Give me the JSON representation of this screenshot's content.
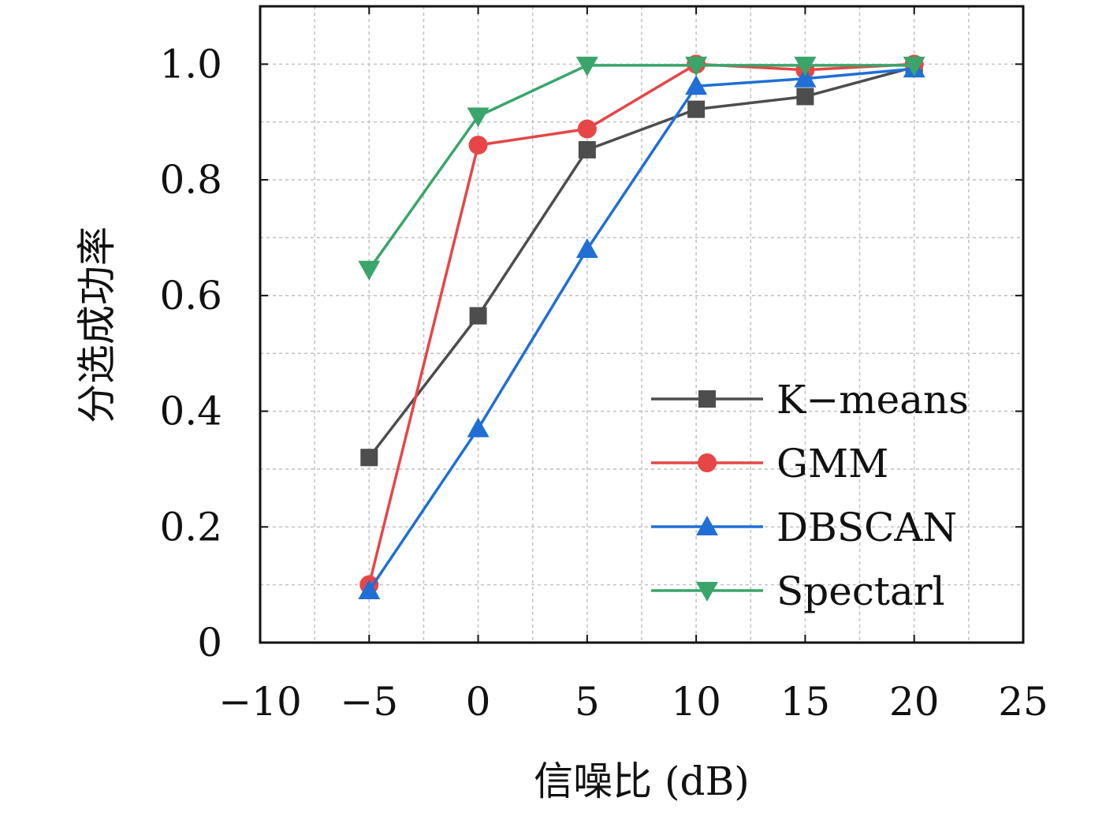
{
  "chart_data": {
    "type": "line",
    "xlabel": "信噪比 (dB)",
    "ylabel": "分选成功率",
    "xlim": [
      -10,
      25
    ],
    "ylim": [
      0,
      1.1
    ],
    "xticks": [
      -10,
      -5,
      0,
      5,
      10,
      15,
      20,
      25
    ],
    "xtick_labels": [
      "−10",
      "−5",
      "0",
      "5",
      "10",
      "15",
      "20",
      "25"
    ],
    "yticks": [
      0,
      0.2,
      0.4,
      0.6,
      0.8,
      1.0
    ],
    "ytick_labels": [
      "0",
      "0.2",
      "0.4",
      "0.6",
      "0.8",
      "1.0"
    ],
    "grid": true,
    "legend_position": "bottom-right",
    "x": [
      -5,
      0,
      5,
      10,
      15,
      20
    ],
    "series": [
      {
        "name": "K−means",
        "color": "#4d4d4d",
        "marker": "square",
        "values": [
          0.32,
          0.565,
          0.852,
          0.922,
          0.944,
          0.995
        ]
      },
      {
        "name": "GMM",
        "color": "#e64646",
        "marker": "circle",
        "values": [
          0.1,
          0.86,
          0.888,
          1.0,
          0.99,
          1.0
        ]
      },
      {
        "name": "DBSCAN",
        "color": "#1f6fd6",
        "marker": "triangle-up",
        "values": [
          0.09,
          0.37,
          0.68,
          0.962,
          0.975,
          0.992
        ]
      },
      {
        "name": "Spectarl",
        "color": "#3aa56a",
        "marker": "triangle-down",
        "values": [
          0.645,
          0.91,
          0.998,
          0.998,
          0.998,
          0.998
        ]
      }
    ]
  }
}
